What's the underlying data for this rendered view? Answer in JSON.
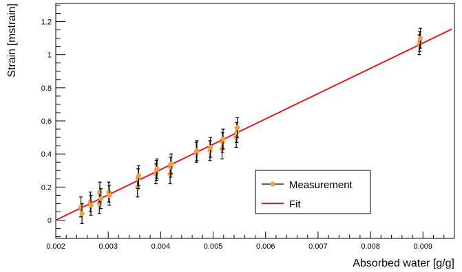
{
  "chart_data": {
    "type": "scatter",
    "title": "",
    "xlabel": "Absorbed water [g/g]",
    "ylabel": "Strain [mstrain]",
    "xlim": [
      0.002,
      0.0096
    ],
    "ylim": [
      -0.11,
      1.31
    ],
    "x_ticks": [
      0.002,
      0.003,
      0.004,
      0.005,
      0.006,
      0.007,
      0.008,
      0.009
    ],
    "x_tick_labels": [
      "0.002",
      "0.003",
      "0.004",
      "0.005",
      "0.006",
      "0.007",
      "0.008",
      "0.009"
    ],
    "y_ticks": [
      0,
      0.2,
      0.4,
      0.6,
      0.8,
      1.0,
      1.2
    ],
    "y_tick_labels": [
      "0",
      "0.2",
      "0.4",
      "0.6",
      "0.8",
      "1",
      "1.2"
    ],
    "grid": false,
    "legend_position": "lower-right",
    "colors": {
      "marker": "#f5a040",
      "error_bar": "#000000",
      "fit_line": "#e8191e"
    },
    "series": [
      {
        "name": "Measurement",
        "type": "scatter",
        "points": [
          {
            "x": 0.00248,
            "y": 0.08,
            "yerr": 0.06
          },
          {
            "x": 0.0025,
            "y": 0.04,
            "yerr": 0.06
          },
          {
            "x": 0.00266,
            "y": 0.11,
            "yerr": 0.06
          },
          {
            "x": 0.00267,
            "y": 0.09,
            "yerr": 0.06
          },
          {
            "x": 0.00283,
            "y": 0.1,
            "yerr": 0.06
          },
          {
            "x": 0.00284,
            "y": 0.17,
            "yerr": 0.06
          },
          {
            "x": 0.00286,
            "y": 0.13,
            "yerr": 0.06
          },
          {
            "x": 0.00301,
            "y": 0.17,
            "yerr": 0.06
          },
          {
            "x": 0.00302,
            "y": 0.15,
            "yerr": 0.06
          },
          {
            "x": 0.00356,
            "y": 0.2,
            "yerr": 0.06
          },
          {
            "x": 0.00357,
            "y": 0.25,
            "yerr": 0.06
          },
          {
            "x": 0.00358,
            "y": 0.27,
            "yerr": 0.06
          },
          {
            "x": 0.00391,
            "y": 0.28,
            "yerr": 0.06
          },
          {
            "x": 0.00392,
            "y": 0.3,
            "yerr": 0.06
          },
          {
            "x": 0.00393,
            "y": 0.31,
            "yerr": 0.06
          },
          {
            "x": 0.00418,
            "y": 0.28,
            "yerr": 0.06
          },
          {
            "x": 0.00419,
            "y": 0.32,
            "yerr": 0.06
          },
          {
            "x": 0.0042,
            "y": 0.34,
            "yerr": 0.06
          },
          {
            "x": 0.00468,
            "y": 0.41,
            "yerr": 0.06
          },
          {
            "x": 0.00469,
            "y": 0.42,
            "yerr": 0.06
          },
          {
            "x": 0.00494,
            "y": 0.42,
            "yerr": 0.06
          },
          {
            "x": 0.00495,
            "y": 0.44,
            "yerr": 0.06
          },
          {
            "x": 0.00517,
            "y": 0.43,
            "yerr": 0.06
          },
          {
            "x": 0.00518,
            "y": 0.47,
            "yerr": 0.06
          },
          {
            "x": 0.00519,
            "y": 0.49,
            "yerr": 0.06
          },
          {
            "x": 0.00544,
            "y": 0.5,
            "yerr": 0.06
          },
          {
            "x": 0.00545,
            "y": 0.53,
            "yerr": 0.06
          },
          {
            "x": 0.00546,
            "y": 0.56,
            "yerr": 0.06
          },
          {
            "x": 0.00893,
            "y": 1.06,
            "yerr": 0.06
          },
          {
            "x": 0.00894,
            "y": 1.08,
            "yerr": 0.06
          },
          {
            "x": 0.00895,
            "y": 1.1,
            "yerr": 0.06
          }
        ]
      },
      {
        "name": "Fit",
        "type": "line",
        "x": [
          0.002,
          0.00955
        ],
        "y": [
          0.0,
          1.155
        ]
      }
    ]
  }
}
